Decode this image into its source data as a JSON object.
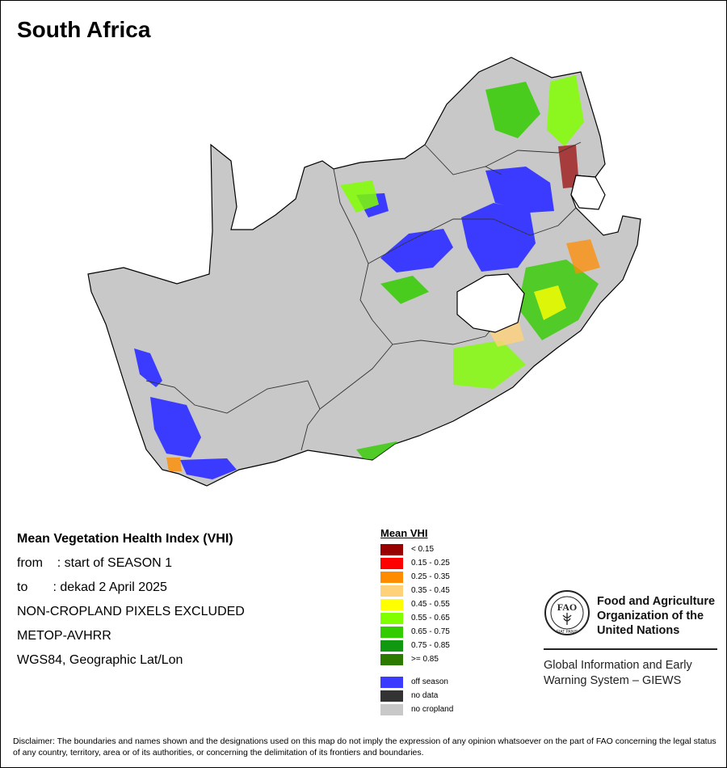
{
  "map_title": "South Africa",
  "info": {
    "title": "Mean Vegetation Health Index (VHI)",
    "from_line": "from    : start of SEASON 1",
    "to_line": "to       : dekad 2 April 2025",
    "exclusion": "NON-CROPLAND PIXELS EXCLUDED",
    "sensor": "METOP-AVHRR",
    "projection": "WGS84, Geographic Lat/Lon"
  },
  "legend": {
    "title": "Mean VHI",
    "classes": [
      {
        "label": "< 0.15",
        "color": "#990000"
      },
      {
        "label": "0.15 - 0.25",
        "color": "#ff0000"
      },
      {
        "label": "0.25 - 0.35",
        "color": "#ff8c00"
      },
      {
        "label": "0.35 - 0.45",
        "color": "#ffd27a"
      },
      {
        "label": "0.45 - 0.55",
        "color": "#ffff00"
      },
      {
        "label": "0.55 - 0.65",
        "color": "#80ff00"
      },
      {
        "label": "0.65 - 0.75",
        "color": "#33cc00"
      },
      {
        "label": "0.75 - 0.85",
        "color": "#109910"
      },
      {
        "label": ">= 0.85",
        "color": "#2d7a00"
      }
    ],
    "extra_classes": [
      {
        "label": "off season",
        "color": "#3b3bff"
      },
      {
        "label": "no data",
        "color": "#333333"
      },
      {
        "label": "no cropland",
        "color": "#c8c8c8"
      }
    ]
  },
  "colors": {
    "land": "#c8c8c8",
    "border": "#000000",
    "province_border": "#333333"
  },
  "fao": {
    "logo_text": "FAO",
    "logo_motto": "FIAT PANIS",
    "name_line1": "Food and Agriculture",
    "name_line2": "Organization of the",
    "name_line3": "United Nations",
    "giews_line1": "Global Information and Early",
    "giews_line2": "Warning System – GIEWS"
  },
  "disclaimer": "Disclaimer: The boundaries and names shown and the designations used on this map do not imply the expression of any opinion whatsoever on the part of FAO concerning the legal status of any country, territory, area or of its authorities, or concerning the delimitation of its frontiers and boundaries."
}
